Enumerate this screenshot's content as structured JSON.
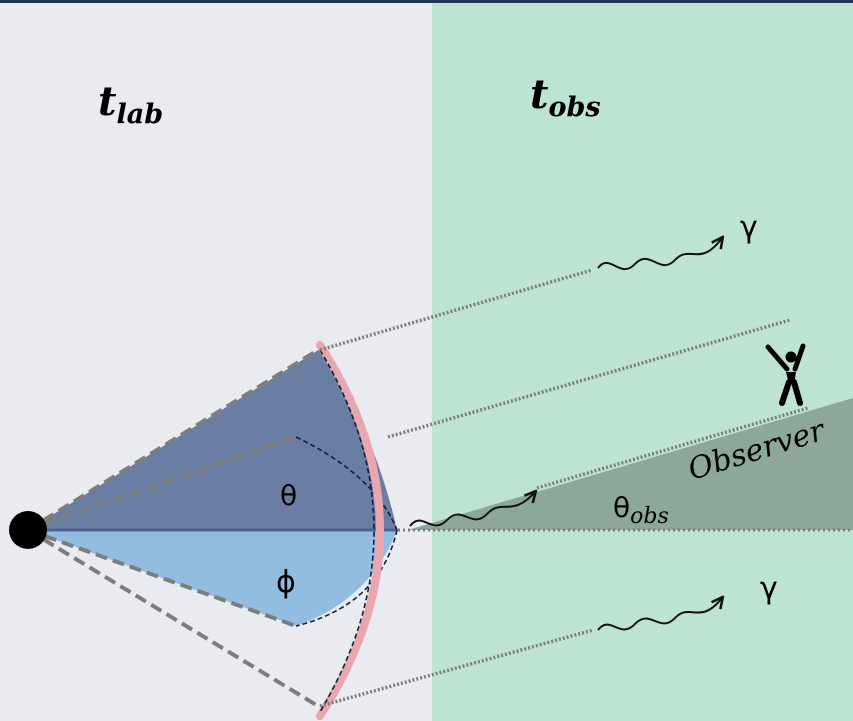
{
  "labels": {
    "t_lab_main": "t",
    "t_lab_sub": "lab",
    "t_obs_main": "t",
    "t_obs_sub": "obs",
    "gamma_top": "γ",
    "gamma_bottom": "γ",
    "theta": "θ",
    "phi": "ϕ",
    "theta_obs_main": "θ",
    "theta_obs_sub": "obs",
    "observer": "Observer"
  },
  "colors": {
    "lab_region": "#e9ebf0",
    "obs_region": "#bde4d3",
    "top_border": "#1f3354",
    "upper_wedge": "#6a7ea3",
    "lower_wedge": "#93bde0",
    "shell_arc": "#e8a6ae",
    "observer_wedge": "#8ba898",
    "source": "#000000",
    "dashed_lines": "#7d7d7d"
  },
  "icons": {
    "observer_figure": "person-cheering-icon",
    "photon": "wavy-arrow-icon"
  }
}
